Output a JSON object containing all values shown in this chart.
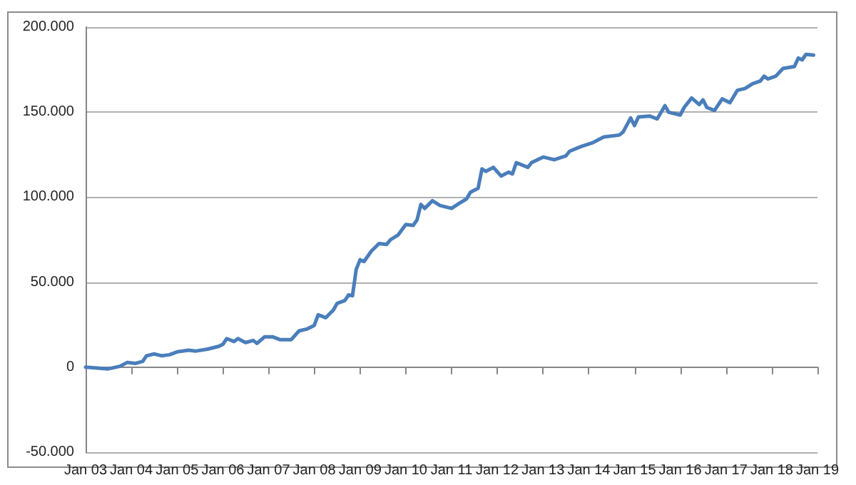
{
  "chart_data": {
    "type": "line",
    "color": "#4a7ebb",
    "grid": "y",
    "marker": "none",
    "line_style": "solid",
    "x": [
      "2003-01",
      "2003-04",
      "2003-07",
      "2003-10",
      "2003-12",
      "2004-02",
      "2004-04",
      "2004-05",
      "2004-07",
      "2004-09",
      "2004-11",
      "2005-01",
      "2005-04",
      "2005-06",
      "2005-09",
      "2005-12",
      "2006-01",
      "2006-02",
      "2006-04",
      "2006-05",
      "2006-07",
      "2006-09",
      "2006-10",
      "2006-12",
      "2007-02",
      "2007-04",
      "2007-07",
      "2007-09",
      "2007-11",
      "2008-01",
      "2008-02",
      "2008-04",
      "2008-06",
      "2008-07",
      "2008-09",
      "2008-10",
      "2008-11",
      "2008-12",
      "2009-01",
      "2009-02",
      "2009-04",
      "2009-06",
      "2009-08",
      "2009-09",
      "2009-11",
      "2010-01",
      "2010-03",
      "2010-04",
      "2010-05",
      "2010-06",
      "2010-08",
      "2010-10",
      "2011-01",
      "2011-03",
      "2011-05",
      "2011-06",
      "2011-08",
      "2011-09",
      "2011-10",
      "2011-12",
      "2012-02",
      "2012-04",
      "2012-05",
      "2012-06",
      "2012-09",
      "2012-10",
      "2013-01",
      "2013-04",
      "2013-07",
      "2013-08",
      "2013-11",
      "2014-02",
      "2014-03",
      "2014-05",
      "2014-09",
      "2014-10",
      "2014-12",
      "2015-01",
      "2015-02",
      "2015-05",
      "2015-07",
      "2015-09",
      "2015-10",
      "2016-01",
      "2016-02",
      "2016-04",
      "2016-06",
      "2016-07",
      "2016-08",
      "2016-10",
      "2016-12",
      "2017-02",
      "2017-04",
      "2017-06",
      "2017-08",
      "2017-10",
      "2017-11",
      "2017-12",
      "2018-02",
      "2018-04",
      "2018-07",
      "2018-08",
      "2018-09",
      "2018-10",
      "2018-12"
    ],
    "values": [
      0,
      -500,
      -1000,
      500,
      2800,
      2200,
      3400,
      6700,
      7800,
      6700,
      7300,
      9000,
      10000,
      9500,
      10600,
      12300,
      13400,
      16800,
      15100,
      16800,
      14500,
      15700,
      14000,
      17900,
      17900,
      16200,
      16200,
      21300,
      22400,
      24600,
      30800,
      29100,
      33600,
      37500,
      39200,
      42500,
      42000,
      57600,
      63200,
      62100,
      68300,
      72700,
      72200,
      75000,
      77800,
      83900,
      83400,
      86700,
      95700,
      93400,
      97900,
      95100,
      93400,
      96200,
      99000,
      102900,
      105200,
      116600,
      115200,
      117500,
      112400,
      114700,
      113600,
      120300,
      117500,
      120300,
      123600,
      122000,
      124200,
      127000,
      129800,
      132000,
      133100,
      135400,
      136500,
      138200,
      146600,
      142100,
      147100,
      147700,
      146000,
      153800,
      149900,
      148300,
      152700,
      158300,
      154400,
      157200,
      152700,
      151000,
      157800,
      155500,
      162800,
      163900,
      166700,
      168300,
      171100,
      169500,
      171100,
      175700,
      176800,
      181800,
      180700,
      184000,
      183500
    ],
    "xlim": [
      "2003-01",
      "2019-01"
    ],
    "xticks": [
      {
        "value": "2003-01",
        "label": "Jan 03"
      },
      {
        "value": "2004-01",
        "label": "Jan 04"
      },
      {
        "value": "2005-01",
        "label": "Jan 05"
      },
      {
        "value": "2006-01",
        "label": "Jan 06"
      },
      {
        "value": "2007-01",
        "label": "Jan 07"
      },
      {
        "value": "2008-01",
        "label": "Jan 08"
      },
      {
        "value": "2009-01",
        "label": "Jan 09"
      },
      {
        "value": "2010-01",
        "label": "Jan 10"
      },
      {
        "value": "2011-01",
        "label": "Jan 11"
      },
      {
        "value": "2012-01",
        "label": "Jan 12"
      },
      {
        "value": "2013-01",
        "label": "Jan 13"
      },
      {
        "value": "2014-01",
        "label": "Jan 14"
      },
      {
        "value": "2015-01",
        "label": "Jan 15"
      },
      {
        "value": "2016-01",
        "label": "Jan 16"
      },
      {
        "value": "2017-01",
        "label": "Jan 17"
      },
      {
        "value": "2018-01",
        "label": "Jan 18"
      },
      {
        "value": "2019-01",
        "label": "Jan 19"
      }
    ],
    "ylim": [
      -50000,
      200000
    ],
    "yticks": [
      {
        "value": -50000,
        "label": "-50.000"
      },
      {
        "value": 0,
        "label": "0"
      },
      {
        "value": 50000,
        "label": "50.000"
      },
      {
        "value": 100000,
        "label": "100.000"
      },
      {
        "value": 150000,
        "label": "150.000"
      },
      {
        "value": 200000,
        "label": "200.000"
      }
    ]
  }
}
